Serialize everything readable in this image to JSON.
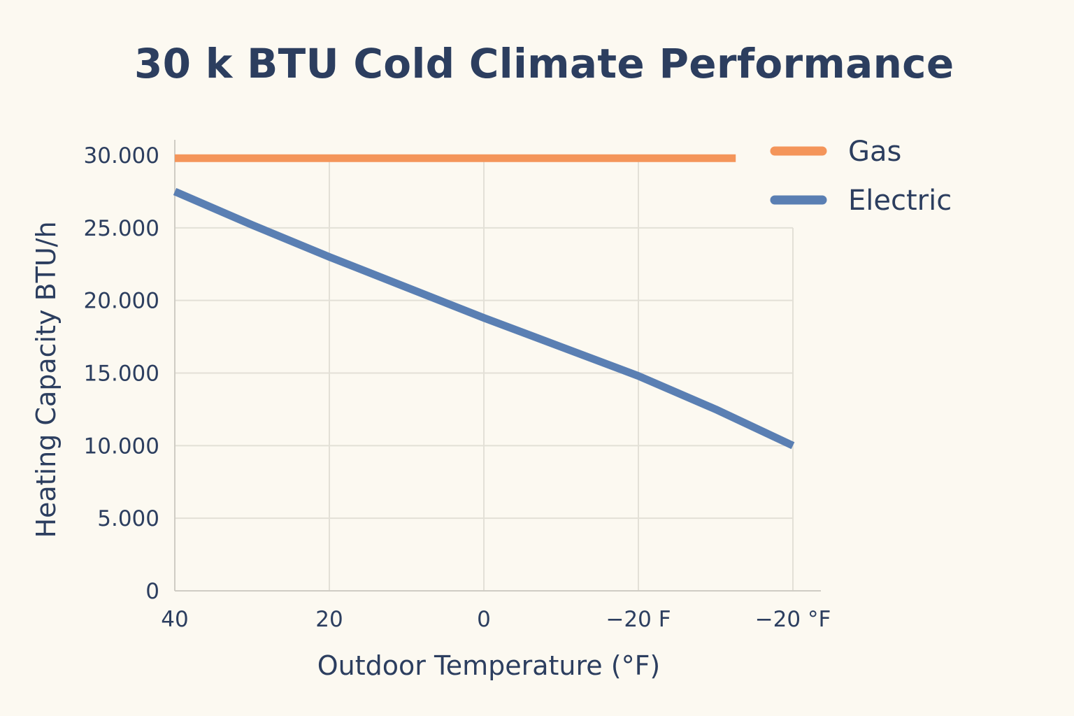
{
  "chart_data": {
    "type": "line",
    "title": "30 k BTU Cold Climate Performance",
    "xlabel": "Outdoor Temperature (°F)",
    "ylabel": "Heating Capacity BTU/h",
    "x_tick_labels": [
      "40",
      "20",
      "0",
      "−20 F",
      "−20 °F"
    ],
    "y_tick_labels": [
      "0",
      "5.000",
      "10.000",
      "15.000",
      "20.000",
      "25.000",
      "30.000"
    ],
    "y_ticks": [
      0,
      5000,
      10000,
      15000,
      20000,
      25000,
      30000
    ],
    "ylim": [
      0,
      30000
    ],
    "x_positions": [
      0,
      1,
      2,
      3,
      4
    ],
    "xlim": [
      0,
      4
    ],
    "grid": true,
    "legend_position": "top-right",
    "series": [
      {
        "name": "Gas",
        "color": "#f4955a",
        "points": [
          [
            0,
            29800
          ],
          [
            3.63,
            29800
          ]
        ]
      },
      {
        "name": "Electric",
        "color": "#5a7fb3",
        "points": [
          [
            0,
            27500
          ],
          [
            0.5,
            25200
          ],
          [
            1,
            23000
          ],
          [
            1.5,
            20900
          ],
          [
            2,
            18800
          ],
          [
            2.5,
            16800
          ],
          [
            3,
            14800
          ],
          [
            3.5,
            12500
          ],
          [
            4,
            10000
          ]
        ]
      }
    ]
  }
}
